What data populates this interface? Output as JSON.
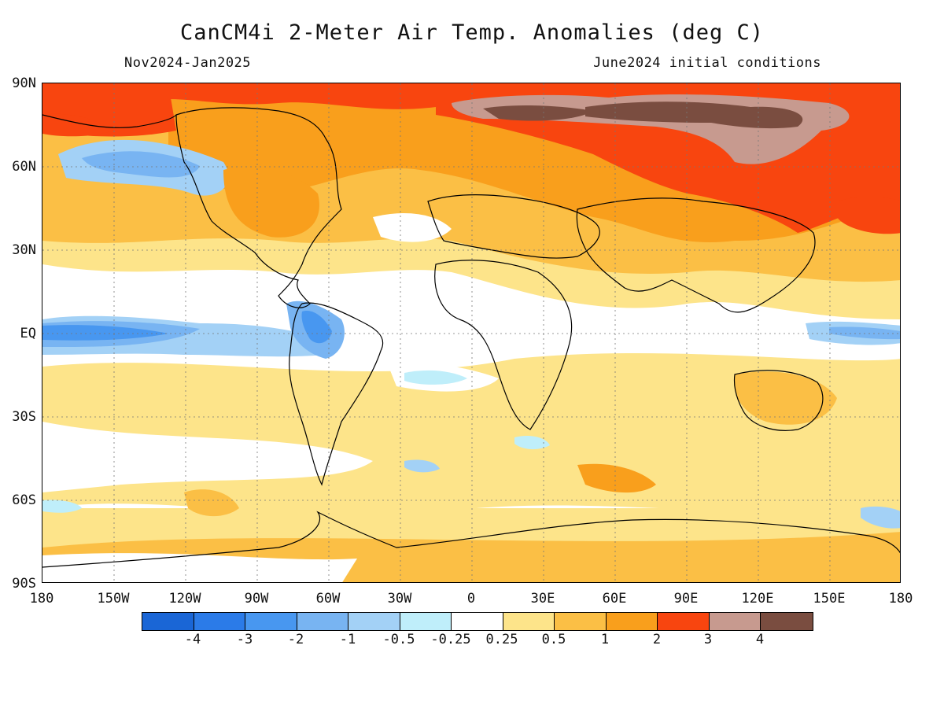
{
  "title": "CanCM4i 2-Meter Air Temp. Anomalies (deg C)",
  "period": "Nov2024-Jan2025",
  "initial_conditions": "June2024 initial conditions",
  "lat_labels": [
    "90N",
    "60N",
    "30N",
    "EQ",
    "30S",
    "60S",
    "90S"
  ],
  "lon_labels": [
    "180",
    "150W",
    "120W",
    "90W",
    "60W",
    "30W",
    "0",
    "30E",
    "60E",
    "90E",
    "120E",
    "150E",
    "180"
  ],
  "colorbar": {
    "colors": [
      "#1a66d6",
      "#2b7be8",
      "#4897f0",
      "#78b4f2",
      "#a3d1f6",
      "#bfeefa",
      "#ffffff",
      "#fde48a",
      "#fbbf45",
      "#f99f1c",
      "#f8450f",
      "#c79a8f",
      "#7a4d40"
    ],
    "labels": [
      "-4",
      "-3",
      "-2",
      "-1",
      "-0.5",
      "-0.25",
      "0.25",
      "0.5",
      "1",
      "2",
      "3",
      "4"
    ]
  }
}
